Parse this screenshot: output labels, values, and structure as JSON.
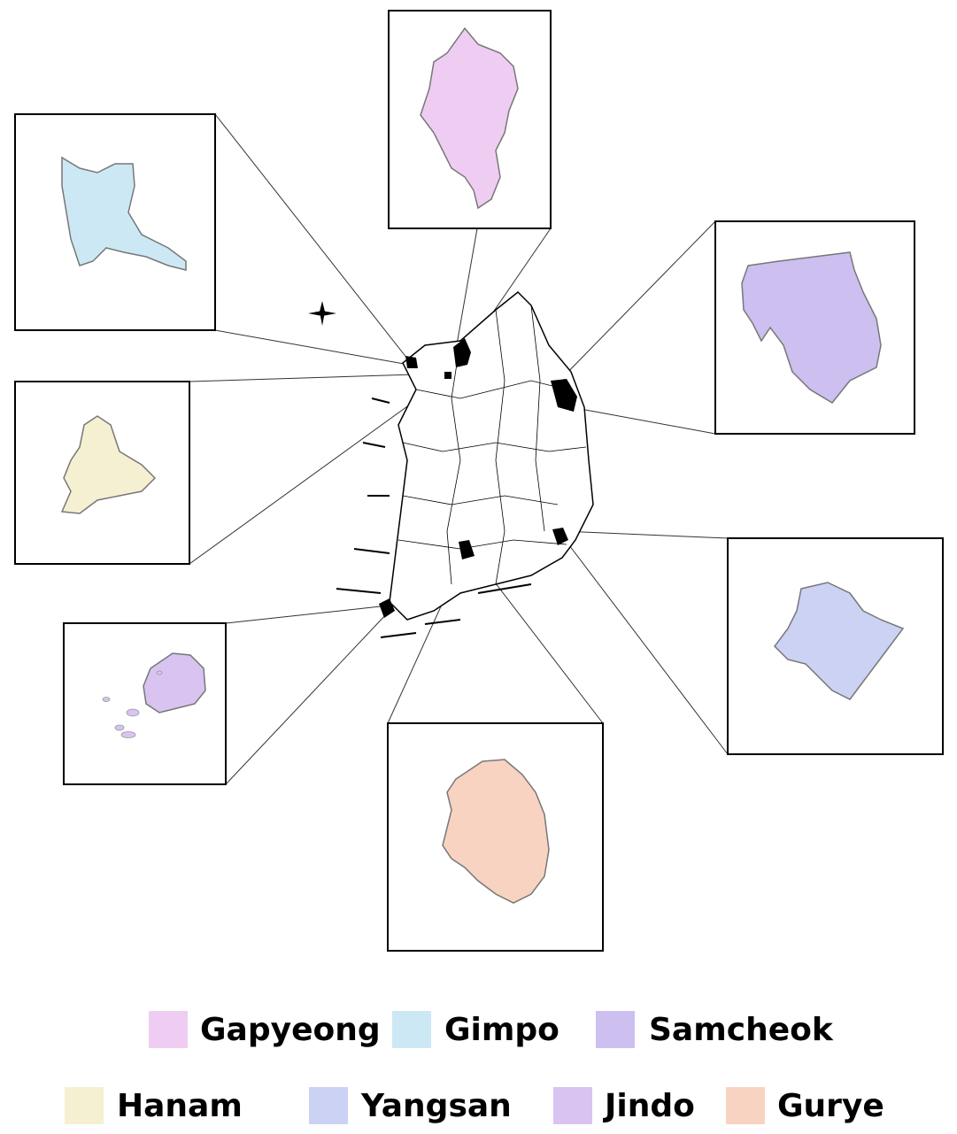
{
  "legend": [
    {
      "label": "Gapyeong",
      "color": "#efcdf3"
    },
    {
      "label": "Gimpo",
      "color": "#cde8f5"
    },
    {
      "label": "Samcheok",
      "color": "#cdbff0"
    },
    {
      "label": "Hanam",
      "color": "#f5f0d2"
    },
    {
      "label": "Yangsan",
      "color": "#cbd2f3"
    },
    {
      "label": "Jindo",
      "color": "#d9c3f0"
    },
    {
      "label": "Gurye",
      "color": "#f8d3c2"
    }
  ]
}
